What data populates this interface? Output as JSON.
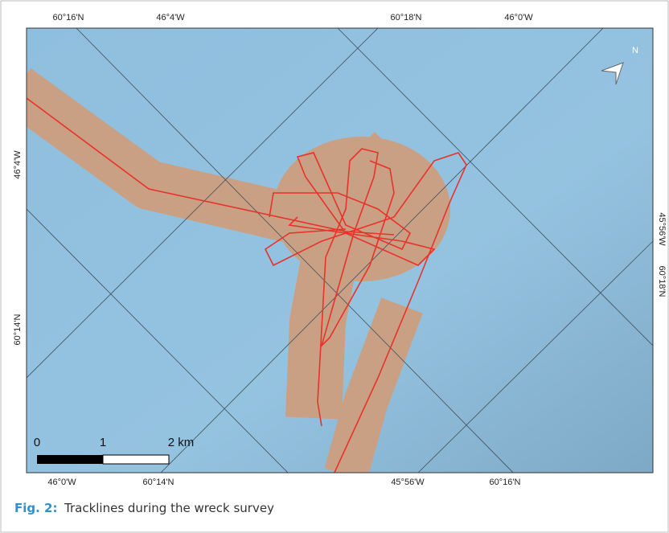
{
  "graticule": {
    "top": [
      "60°16'N",
      "46°4'W",
      "60°18'N",
      "46°0'W"
    ],
    "bottom": [
      "46°0'W",
      "60°14'N",
      "45°56'W",
      "60°16'N"
    ],
    "left": [
      "46°4'W",
      "60°14'N"
    ],
    "right": [
      "45°56'W",
      "60°18'N"
    ]
  },
  "north_arrow": "N",
  "scale_bar": {
    "labels": [
      "0",
      "1",
      "2 km"
    ]
  },
  "caption": {
    "label": "Fig. 2:",
    "text": "Tracklines during the wreck survey"
  }
}
